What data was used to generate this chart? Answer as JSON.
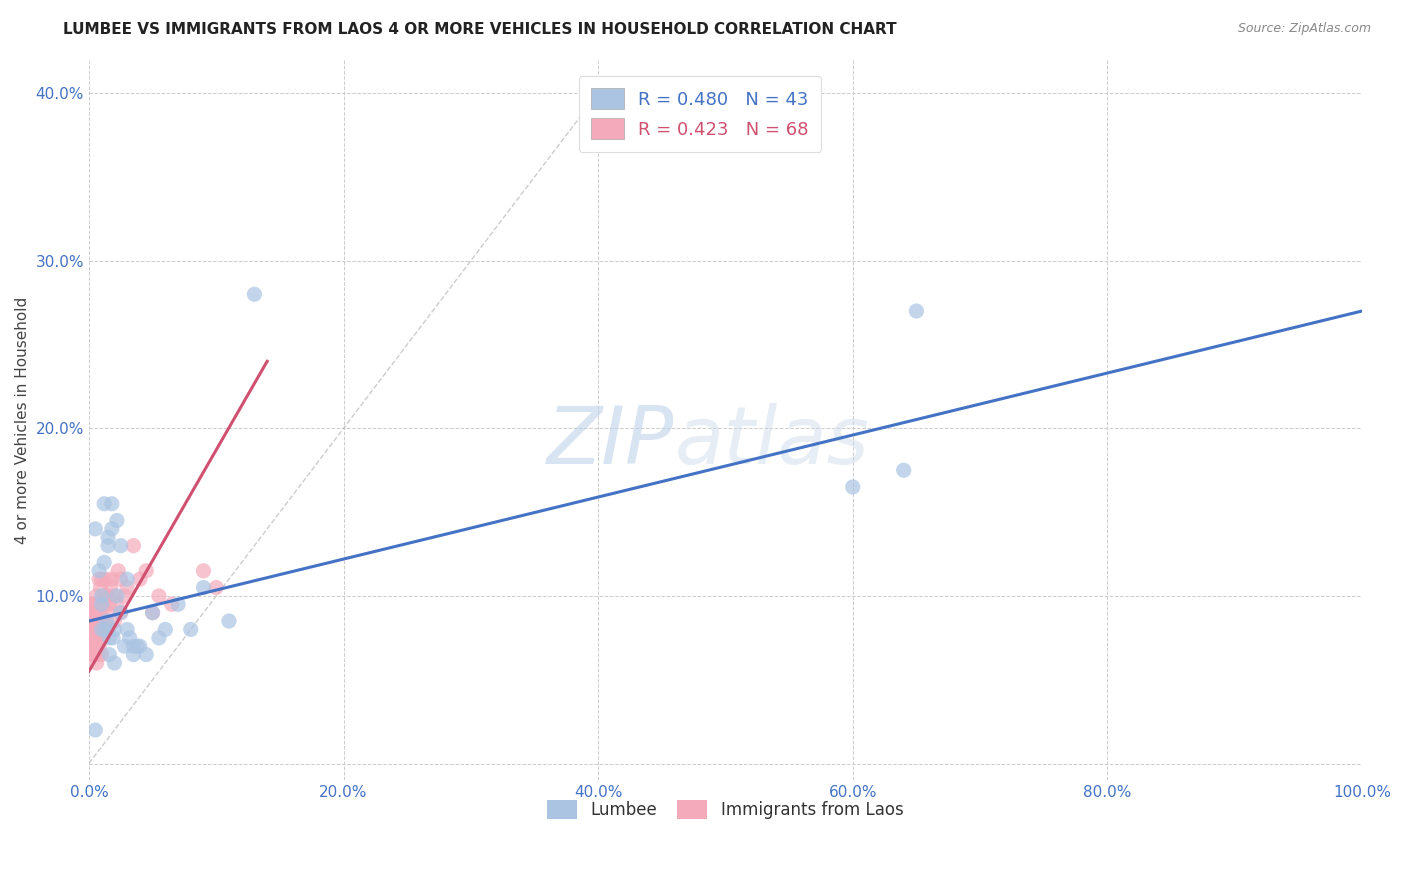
{
  "title": "LUMBEE VS IMMIGRANTS FROM LAOS 4 OR MORE VEHICLES IN HOUSEHOLD CORRELATION CHART",
  "source": "Source: ZipAtlas.com",
  "xlabel": "",
  "ylabel": "4 or more Vehicles in Household",
  "xlim": [
    0,
    1.0
  ],
  "ylim": [
    -0.01,
    0.42
  ],
  "xticks": [
    0.0,
    0.2,
    0.4,
    0.6,
    0.8,
    1.0
  ],
  "xticklabels": [
    "0.0%",
    "20.0%",
    "40.0%",
    "60.0%",
    "80.0%",
    "100.0%"
  ],
  "yticks": [
    0.0,
    0.1,
    0.2,
    0.3,
    0.4
  ],
  "yticklabels": [
    "",
    "10.0%",
    "20.0%",
    "30.0%",
    "40.0%"
  ],
  "lumbee_color": "#aac4e2",
  "laos_color": "#f4aabb",
  "lumbee_line_color": "#4472c4",
  "laos_line_color": "#d05070",
  "diagonal_color": "#c0c0c0",
  "watermark_zip": "ZIP",
  "watermark_atlas": "atlas",
  "legend_R_lumbee": "R = 0.480",
  "legend_N_lumbee": "N = 43",
  "legend_R_laos": "R = 0.423",
  "legend_N_laos": "N = 68",
  "lumbee_x": [
    0.005,
    0.005,
    0.008,
    0.01,
    0.01,
    0.01,
    0.012,
    0.012,
    0.013,
    0.014,
    0.015,
    0.015,
    0.016,
    0.016,
    0.018,
    0.018,
    0.019,
    0.02,
    0.02,
    0.022,
    0.022,
    0.025,
    0.025,
    0.028,
    0.03,
    0.03,
    0.032,
    0.035,
    0.035,
    0.038,
    0.04,
    0.045,
    0.05,
    0.055,
    0.06,
    0.07,
    0.08,
    0.09,
    0.11,
    0.13,
    0.6,
    0.64,
    0.65
  ],
  "lumbee_y": [
    0.02,
    0.14,
    0.115,
    0.08,
    0.1,
    0.095,
    0.12,
    0.155,
    0.08,
    0.085,
    0.135,
    0.13,
    0.075,
    0.065,
    0.155,
    0.14,
    0.075,
    0.06,
    0.08,
    0.145,
    0.1,
    0.13,
    0.09,
    0.07,
    0.11,
    0.08,
    0.075,
    0.07,
    0.065,
    0.07,
    0.07,
    0.065,
    0.09,
    0.075,
    0.08,
    0.095,
    0.08,
    0.105,
    0.085,
    0.28,
    0.165,
    0.175,
    0.27
  ],
  "laos_x": [
    0.002,
    0.002,
    0.002,
    0.002,
    0.002,
    0.003,
    0.003,
    0.003,
    0.003,
    0.003,
    0.004,
    0.004,
    0.004,
    0.005,
    0.005,
    0.005,
    0.005,
    0.005,
    0.005,
    0.006,
    0.006,
    0.006,
    0.006,
    0.006,
    0.007,
    0.007,
    0.007,
    0.007,
    0.008,
    0.008,
    0.008,
    0.008,
    0.009,
    0.009,
    0.009,
    0.01,
    0.01,
    0.01,
    0.01,
    0.01,
    0.011,
    0.011,
    0.012,
    0.012,
    0.013,
    0.013,
    0.014,
    0.015,
    0.015,
    0.016,
    0.017,
    0.018,
    0.02,
    0.02,
    0.022,
    0.023,
    0.025,
    0.025,
    0.028,
    0.03,
    0.035,
    0.04,
    0.045,
    0.05,
    0.055,
    0.065,
    0.09,
    0.1
  ],
  "laos_y": [
    0.065,
    0.07,
    0.075,
    0.08,
    0.09,
    0.07,
    0.075,
    0.08,
    0.085,
    0.095,
    0.07,
    0.08,
    0.09,
    0.065,
    0.07,
    0.075,
    0.085,
    0.09,
    0.095,
    0.06,
    0.07,
    0.08,
    0.09,
    0.1,
    0.065,
    0.075,
    0.085,
    0.095,
    0.07,
    0.08,
    0.095,
    0.11,
    0.08,
    0.09,
    0.105,
    0.065,
    0.075,
    0.085,
    0.095,
    0.11,
    0.075,
    0.095,
    0.08,
    0.1,
    0.085,
    0.11,
    0.09,
    0.08,
    0.1,
    0.095,
    0.105,
    0.11,
    0.085,
    0.1,
    0.095,
    0.115,
    0.09,
    0.11,
    0.1,
    0.105,
    0.13,
    0.11,
    0.115,
    0.09,
    0.1,
    0.095,
    0.115,
    0.105
  ],
  "lumbee_line_x": [
    0.0,
    1.0
  ],
  "lumbee_line_y": [
    0.085,
    0.27
  ],
  "laos_line_x": [
    0.0,
    0.14
  ],
  "laos_line_y": [
    0.055,
    0.24
  ]
}
